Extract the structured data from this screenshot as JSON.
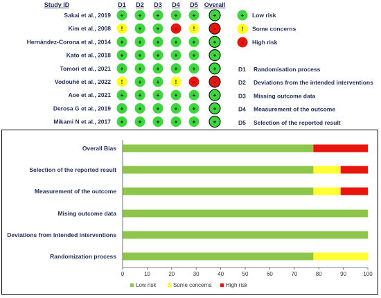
{
  "traffic_light": {
    "headers": [
      "Study ID",
      "D1",
      "D2",
      "D3",
      "D4",
      "D5",
      "Overall"
    ],
    "studies": [
      {
        "name": "Sakai et al., 2019",
        "judgements": [
          "low",
          "low",
          "low",
          "low",
          "low",
          "low"
        ]
      },
      {
        "name": "Kim et al., 2008",
        "judgements": [
          "some",
          "low",
          "low",
          "high",
          "some",
          "high"
        ]
      },
      {
        "name": "Hernández-Corona et al., 2014",
        "judgements": [
          "low",
          "low",
          "low",
          "low",
          "low",
          "low"
        ]
      },
      {
        "name": "Kato et al., 2018",
        "judgements": [
          "low",
          "low",
          "low",
          "low",
          "low",
          "low"
        ]
      },
      {
        "name": "Tomori et al., 2021",
        "judgements": [
          "low",
          "low",
          "low",
          "low",
          "low",
          "low"
        ]
      },
      {
        "name": "Vodouhè et al., 2022",
        "judgements": [
          "some",
          "low",
          "low",
          "some",
          "high",
          "high"
        ]
      },
      {
        "name": "Aoe et al., 2021",
        "judgements": [
          "low",
          "low",
          "low",
          "low",
          "low",
          "low"
        ]
      },
      {
        "name": "Derosa G et al., 2019",
        "judgements": [
          "low",
          "low",
          "low",
          "low",
          "low",
          "low"
        ]
      },
      {
        "name": "Mikami N et al., 2017",
        "judgements": [
          "low",
          "low",
          "low",
          "low",
          "low",
          "low"
        ]
      }
    ],
    "symbols": {
      "low": "+",
      "some": "!",
      "high": "-"
    },
    "risk_legend": [
      {
        "key": "low",
        "label": "Low risk",
        "symbol": "+"
      },
      {
        "key": "some",
        "label": "Some concerns",
        "symbol": "!"
      },
      {
        "key": "high",
        "label": "High risk",
        "symbol": "-"
      }
    ],
    "domain_legend": [
      {
        "code": "D1",
        "label": "Randomisation process"
      },
      {
        "code": "D2",
        "label": "Deviations from the intended interventions"
      },
      {
        "code": "D3",
        "label": "Missing outcome data"
      },
      {
        "code": "D4",
        "label": "Measurement of the outcome"
      },
      {
        "code": "D5",
        "label": "Selection of the reported result"
      }
    ]
  },
  "colors": {
    "low": "#3fd63f",
    "some": "#ffff1a",
    "high": "#e3170d",
    "bar_low": "#8dc64b",
    "bar_some": "#ffff33",
    "bar_high": "#e8140e",
    "text": "#1f2b5a"
  },
  "chart_data": {
    "type": "bar",
    "orientation": "horizontal",
    "stacked": true,
    "categories": [
      "Overall Bias",
      "Selection of the reported result",
      "Measurement of the outcome",
      "Mising outcome data",
      "Deviations from intended interventions",
      "Randomization process"
    ],
    "series": [
      {
        "name": "Low risk",
        "key": "low",
        "values": [
          77.8,
          77.8,
          77.8,
          100,
          100,
          77.8
        ]
      },
      {
        "name": "Some concerns",
        "key": "some",
        "values": [
          0,
          11.1,
          11.1,
          0,
          0,
          22.2
        ]
      },
      {
        "name": "High risk",
        "key": "high",
        "values": [
          22.2,
          11.1,
          11.1,
          0,
          0,
          0
        ]
      }
    ],
    "xlim": [
      0,
      100
    ],
    "xticks": [
      "0",
      "10",
      "20",
      "30",
      "40",
      "50",
      "60",
      "70",
      "80",
      "90",
      "100"
    ],
    "xlabel": "",
    "ylabel": "",
    "legend_position": "bottom",
    "grid": false
  }
}
